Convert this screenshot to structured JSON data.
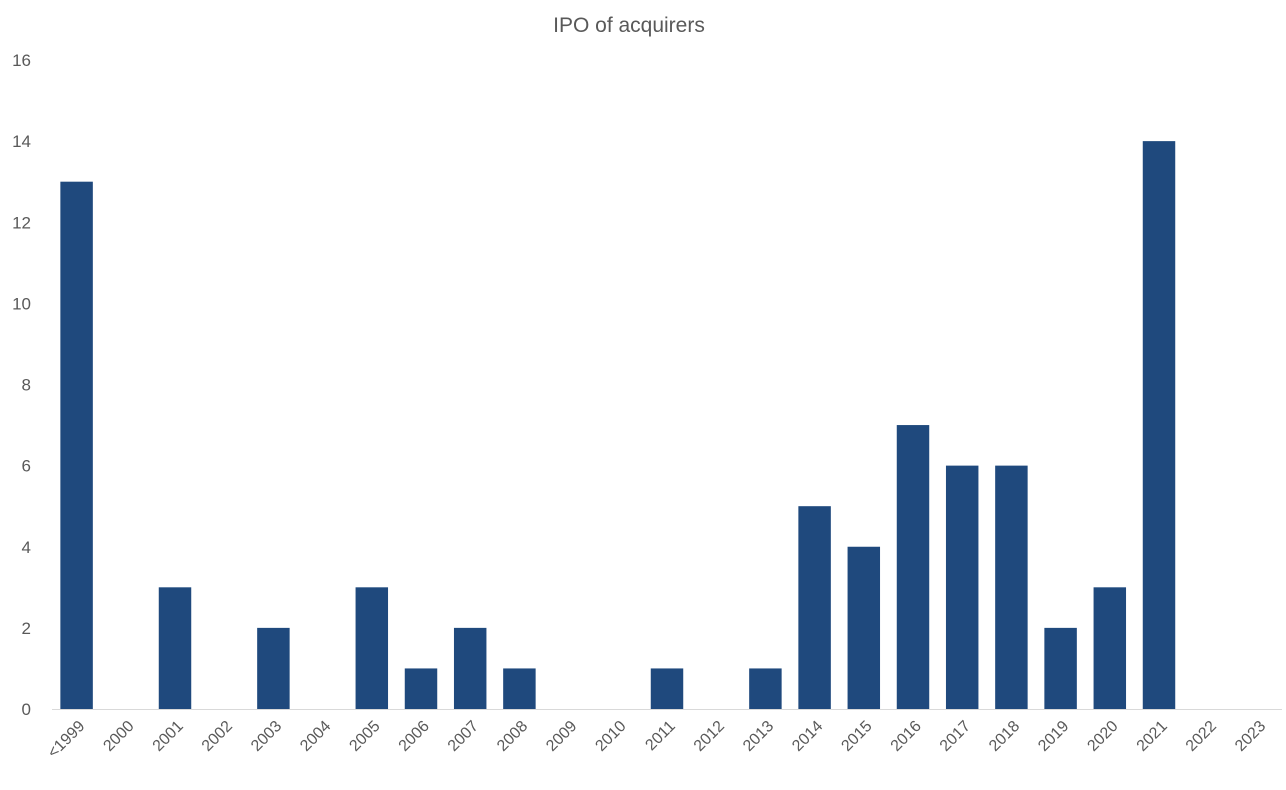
{
  "chart_data": {
    "type": "bar",
    "title": "IPO of acquirers",
    "xlabel": "",
    "ylabel": "",
    "categories": [
      "<1999",
      "2000",
      "2001",
      "2002",
      "2003",
      "2004",
      "2005",
      "2006",
      "2007",
      "2008",
      "2009",
      "2010",
      "2011",
      "2012",
      "2013",
      "2014",
      "2015",
      "2016",
      "2017",
      "2018",
      "2019",
      "2020",
      "2021",
      "2022",
      "2023"
    ],
    "values": [
      13,
      0,
      3,
      0,
      2,
      0,
      3,
      1,
      2,
      1,
      0,
      0,
      1,
      0,
      1,
      5,
      4,
      7,
      6,
      6,
      2,
      3,
      14,
      0,
      0
    ],
    "ylim": [
      0,
      16
    ],
    "yticks": [
      0,
      2,
      4,
      6,
      8,
      10,
      12,
      14,
      16
    ],
    "bar_color": "#1F497D",
    "grid": false,
    "legend": "none"
  }
}
